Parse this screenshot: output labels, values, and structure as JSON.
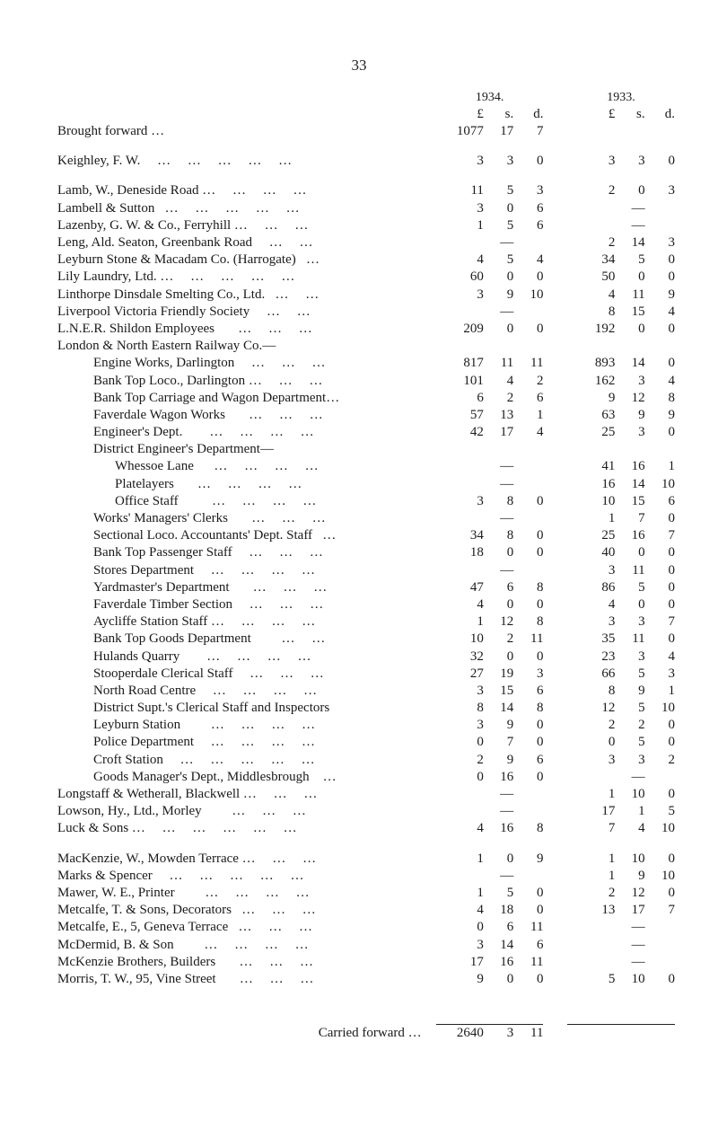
{
  "page_number": "33",
  "years": {
    "left": "1934.",
    "right": "1933."
  },
  "lsd_header": {
    "L": "£",
    "s": "s.",
    "d": "d."
  },
  "footer": {
    "label": "Carried forward …",
    "L": "2640",
    "s": "3",
    "d": "11"
  },
  "rows": [
    {
      "type": "row",
      "indent": 0,
      "desc": "Brought forward …",
      "a": [
        "1077",
        "17",
        "7"
      ],
      "b": [
        "",
        "",
        ""
      ]
    },
    {
      "type": "spacer"
    },
    {
      "type": "row",
      "indent": 0,
      "desc": "Keighley, F. W.     …     …     …     …     …",
      "a": [
        "3",
        "3",
        "0"
      ],
      "b": [
        "3",
        "3",
        "0"
      ]
    },
    {
      "type": "spacer"
    },
    {
      "type": "row",
      "indent": 0,
      "desc": "Lamb, W., Deneside Road …     …     …     …",
      "a": [
        "11",
        "5",
        "3"
      ],
      "b": [
        "2",
        "0",
        "3"
      ]
    },
    {
      "type": "row",
      "indent": 0,
      "desc": "Lambell & Sutton   …     …     …     …     …",
      "a": [
        "3",
        "0",
        "6"
      ],
      "b": [
        "",
        "—",
        ""
      ]
    },
    {
      "type": "row",
      "indent": 0,
      "desc": "Lazenby, G. W. & Co., Ferryhill …     …     …",
      "a": [
        "1",
        "5",
        "6"
      ],
      "b": [
        "",
        "—",
        ""
      ]
    },
    {
      "type": "row",
      "indent": 0,
      "desc": "Leng, Ald. Seaton, Greenbank Road     …     …",
      "a": [
        "",
        "—",
        ""
      ],
      "b": [
        "2",
        "14",
        "3"
      ]
    },
    {
      "type": "row",
      "indent": 0,
      "desc": "Leyburn Stone & Macadam Co. (Harrogate)   …",
      "a": [
        "4",
        "5",
        "4"
      ],
      "b": [
        "34",
        "5",
        "0"
      ]
    },
    {
      "type": "row",
      "indent": 0,
      "desc": "Lily Laundry, Ltd. …     …     …     …     …",
      "a": [
        "60",
        "0",
        "0"
      ],
      "b": [
        "50",
        "0",
        "0"
      ]
    },
    {
      "type": "row",
      "indent": 0,
      "desc": "Linthorpe Dinsdale Smelting Co., Ltd.   …     …",
      "a": [
        "3",
        "9",
        "10"
      ],
      "b": [
        "4",
        "11",
        "9"
      ]
    },
    {
      "type": "row",
      "indent": 0,
      "desc": "Liverpool Victoria Friendly Society     …     …",
      "a": [
        "",
        "—",
        ""
      ],
      "b": [
        "8",
        "15",
        "4"
      ]
    },
    {
      "type": "row",
      "indent": 0,
      "desc": "L.N.E.R. Shildon Employees       …     …     …",
      "a": [
        "209",
        "0",
        "0"
      ],
      "b": [
        "192",
        "0",
        "0"
      ]
    },
    {
      "type": "row",
      "indent": 0,
      "desc": "London & North Eastern Railway Co.—",
      "a": [
        "",
        "",
        ""
      ],
      "b": [
        "",
        "",
        ""
      ]
    },
    {
      "type": "row",
      "indent": 1,
      "desc": "Engine Works, Darlington     …     …     …",
      "a": [
        "817",
        "11",
        "11"
      ],
      "b": [
        "893",
        "14",
        "0"
      ]
    },
    {
      "type": "row",
      "indent": 1,
      "desc": "Bank Top Loco., Darlington …     …     …",
      "a": [
        "101",
        "4",
        "2"
      ],
      "b": [
        "162",
        "3",
        "4"
      ]
    },
    {
      "type": "row",
      "indent": 1,
      "desc": "Bank Top Carriage and Wagon Department…",
      "a": [
        "6",
        "2",
        "6"
      ],
      "b": [
        "9",
        "12",
        "8"
      ]
    },
    {
      "type": "row",
      "indent": 1,
      "desc": "Faverdale Wagon Works       …     …     …",
      "a": [
        "57",
        "13",
        "1"
      ],
      "b": [
        "63",
        "9",
        "9"
      ]
    },
    {
      "type": "row",
      "indent": 1,
      "desc": "Engineer's Dept.        …     …     …     …",
      "a": [
        "42",
        "17",
        "4"
      ],
      "b": [
        "25",
        "3",
        "0"
      ]
    },
    {
      "type": "row",
      "indent": 1,
      "desc": "District Engineer's Department—",
      "a": [
        "",
        "",
        ""
      ],
      "b": [
        "",
        "",
        ""
      ]
    },
    {
      "type": "row",
      "indent": 2,
      "desc": "Whessoe Lane      …     …     …     …",
      "a": [
        "",
        "—",
        ""
      ],
      "b": [
        "41",
        "16",
        "1"
      ]
    },
    {
      "type": "row",
      "indent": 2,
      "desc": "Platelayers       …     …     …     …",
      "a": [
        "",
        "—",
        ""
      ],
      "b": [
        "16",
        "14",
        "10"
      ]
    },
    {
      "type": "row",
      "indent": 2,
      "desc": "Office Staff          …     …     …     …",
      "a": [
        "3",
        "8",
        "0"
      ],
      "b": [
        "10",
        "15",
        "6"
      ]
    },
    {
      "type": "row",
      "indent": 1,
      "desc": "Works' Managers' Clerks       …     …     …",
      "a": [
        "",
        "—",
        ""
      ],
      "b": [
        "1",
        "7",
        "0"
      ]
    },
    {
      "type": "row",
      "indent": 1,
      "desc": "Sectional Loco. Accountants' Dept. Staff   …",
      "a": [
        "34",
        "8",
        "0"
      ],
      "b": [
        "25",
        "16",
        "7"
      ]
    },
    {
      "type": "row",
      "indent": 1,
      "desc": "Bank Top Passenger Staff     …     …     …",
      "a": [
        "18",
        "0",
        "0"
      ],
      "b": [
        "40",
        "0",
        "0"
      ]
    },
    {
      "type": "row",
      "indent": 1,
      "desc": "Stores Department     …     …     …     …",
      "a": [
        "",
        "—",
        ""
      ],
      "b": [
        "3",
        "11",
        "0"
      ]
    },
    {
      "type": "row",
      "indent": 1,
      "desc": "Yardmaster's Department       …     …     …",
      "a": [
        "47",
        "6",
        "8"
      ],
      "b": [
        "86",
        "5",
        "0"
      ]
    },
    {
      "type": "row",
      "indent": 1,
      "desc": "Faverdale Timber Section     …     …     …",
      "a": [
        "4",
        "0",
        "0"
      ],
      "b": [
        "4",
        "0",
        "0"
      ]
    },
    {
      "type": "row",
      "indent": 1,
      "desc": "Aycliffe Station Staff …     …     …     …",
      "a": [
        "1",
        "12",
        "8"
      ],
      "b": [
        "3",
        "3",
        "7"
      ]
    },
    {
      "type": "row",
      "indent": 1,
      "desc": "Bank Top Goods Department         …     …",
      "a": [
        "10",
        "2",
        "11"
      ],
      "b": [
        "35",
        "11",
        "0"
      ]
    },
    {
      "type": "row",
      "indent": 1,
      "desc": "Hulands Quarry        …     …     …     …",
      "a": [
        "32",
        "0",
        "0"
      ],
      "b": [
        "23",
        "3",
        "4"
      ]
    },
    {
      "type": "row",
      "indent": 1,
      "desc": "Stooperdale Clerical Staff     …     …     …",
      "a": [
        "27",
        "19",
        "3"
      ],
      "b": [
        "66",
        "5",
        "3"
      ]
    },
    {
      "type": "row",
      "indent": 1,
      "desc": "North Road Centre     …     …     …     …",
      "a": [
        "3",
        "15",
        "6"
      ],
      "b": [
        "8",
        "9",
        "1"
      ]
    },
    {
      "type": "row",
      "indent": 1,
      "desc": "District Supt.'s Clerical Staff and Inspectors",
      "a": [
        "8",
        "14",
        "8"
      ],
      "b": [
        "12",
        "5",
        "10"
      ]
    },
    {
      "type": "row",
      "indent": 1,
      "desc": "Leyburn Station         …     …     …     …",
      "a": [
        "3",
        "9",
        "0"
      ],
      "b": [
        "2",
        "2",
        "0"
      ]
    },
    {
      "type": "row",
      "indent": 1,
      "desc": "Police Department     …     …     …     …",
      "a": [
        "0",
        "7",
        "0"
      ],
      "b": [
        "0",
        "5",
        "0"
      ]
    },
    {
      "type": "row",
      "indent": 1,
      "desc": "Croft Station     …     …     …     …     …",
      "a": [
        "2",
        "9",
        "6"
      ],
      "b": [
        "3",
        "3",
        "2"
      ]
    },
    {
      "type": "row",
      "indent": 1,
      "desc": "Goods Manager's Dept., Middlesbrough    …",
      "a": [
        "0",
        "16",
        "0"
      ],
      "b": [
        "",
        "—",
        ""
      ]
    },
    {
      "type": "row",
      "indent": 0,
      "desc": "Longstaff & Wetherall, Blackwell …     …     …",
      "a": [
        "",
        "—",
        ""
      ],
      "b": [
        "1",
        "10",
        "0"
      ]
    },
    {
      "type": "row",
      "indent": 0,
      "desc": "Lowson, Hy., Ltd., Morley         …     …     …",
      "a": [
        "",
        "—",
        ""
      ],
      "b": [
        "17",
        "1",
        "5"
      ]
    },
    {
      "type": "row",
      "indent": 0,
      "desc": "Luck & Sons …     …     …     …     …     …",
      "a": [
        "4",
        "16",
        "8"
      ],
      "b": [
        "7",
        "4",
        "10"
      ]
    },
    {
      "type": "spacer"
    },
    {
      "type": "row",
      "indent": 0,
      "desc": "MacKenzie, W., Mowden Terrace …     …     …",
      "a": [
        "1",
        "0",
        "9"
      ],
      "b": [
        "1",
        "10",
        "0"
      ]
    },
    {
      "type": "row",
      "indent": 0,
      "desc": "Marks & Spencer     …     …     …     …     …",
      "a": [
        "",
        "—",
        ""
      ],
      "b": [
        "1",
        "9",
        "10"
      ]
    },
    {
      "type": "row",
      "indent": 0,
      "desc": "Mawer, W. E., Printer         …     …     …     …",
      "a": [
        "1",
        "5",
        "0"
      ],
      "b": [
        "2",
        "12",
        "0"
      ]
    },
    {
      "type": "row",
      "indent": 0,
      "desc": "Metcalfe, T. & Sons, Decorators   …     …     …",
      "a": [
        "4",
        "18",
        "0"
      ],
      "b": [
        "13",
        "17",
        "7"
      ]
    },
    {
      "type": "row",
      "indent": 0,
      "desc": "Metcalfe, E., 5, Geneva Terrace   …     …     …",
      "a": [
        "0",
        "6",
        "11"
      ],
      "b": [
        "",
        "—",
        ""
      ]
    },
    {
      "type": "row",
      "indent": 0,
      "desc": "McDermid, B. & Son         …     …     …     …",
      "a": [
        "3",
        "14",
        "6"
      ],
      "b": [
        "",
        "—",
        ""
      ]
    },
    {
      "type": "row",
      "indent": 0,
      "desc": "McKenzie Brothers, Builders       …     …     …",
      "a": [
        "17",
        "16",
        "11"
      ],
      "b": [
        "",
        "—",
        ""
      ]
    },
    {
      "type": "row",
      "indent": 0,
      "desc": "Morris, T. W., 95, Vine Street       …     …     …",
      "a": [
        "9",
        "0",
        "0"
      ],
      "b": [
        "5",
        "10",
        "0"
      ]
    }
  ]
}
